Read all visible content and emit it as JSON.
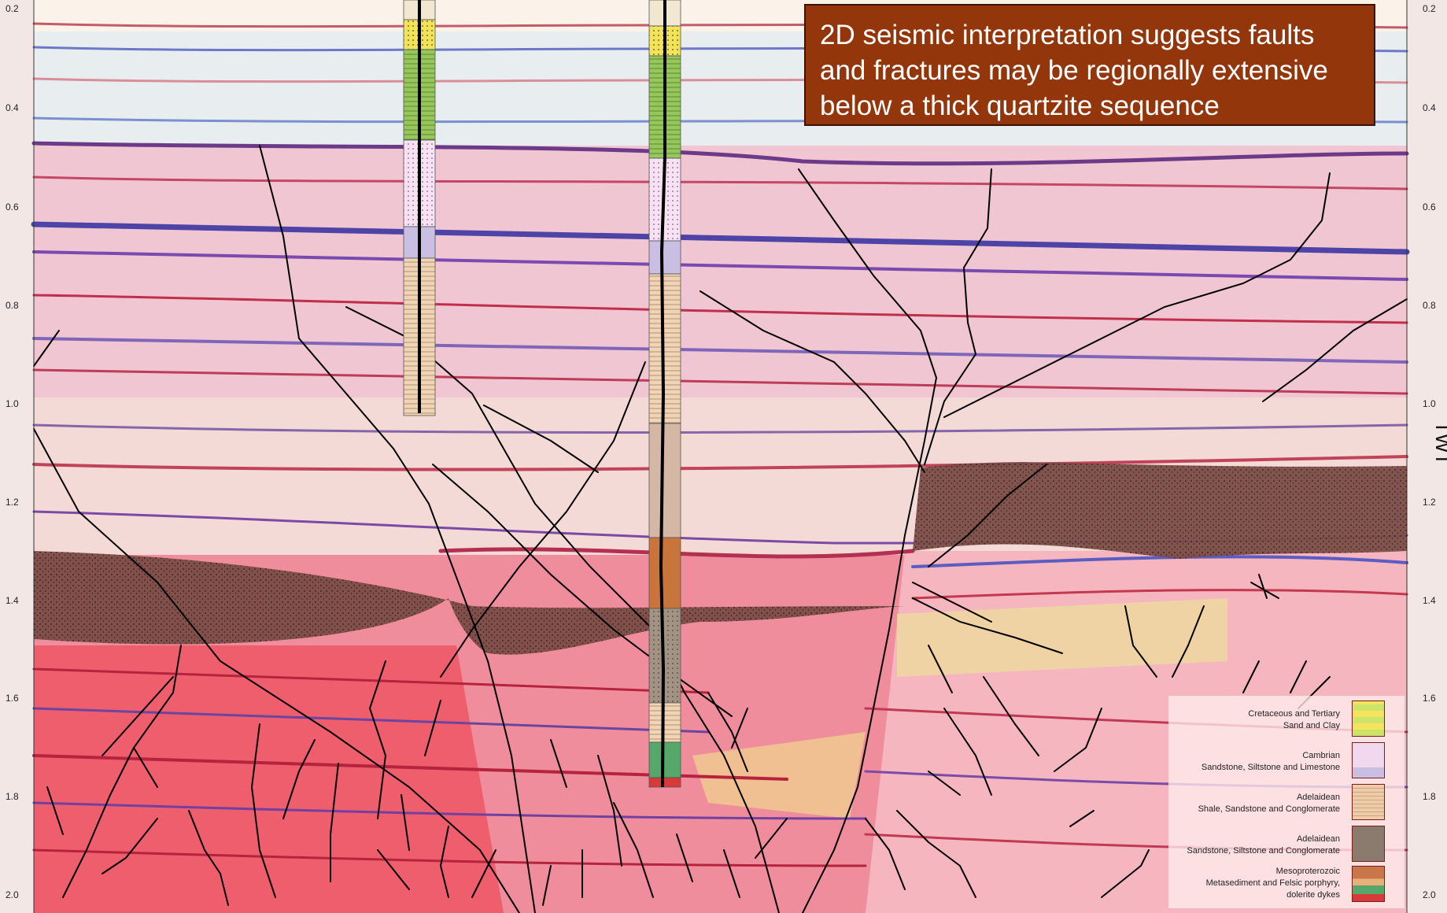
{
  "callout": {
    "lines": [
      "2D seismic interpretation suggests faults",
      "and fractures may be regionally extensive",
      "below a thick quartzite sequence"
    ]
  },
  "axis": {
    "ticks": [
      "0.2",
      "0.4",
      "0.6",
      "0.8",
      "1.0",
      "1.2",
      "1.4",
      "1.6",
      "1.8",
      "2.0"
    ],
    "right_title": "TWT"
  },
  "legend": [
    {
      "line1": "Cretaceous and Tertiary",
      "line2": "Sand and Clay",
      "line3": "",
      "icon": "sand-clay-pattern-icon",
      "color": "#cde36a"
    },
    {
      "line1": "Cambrian",
      "line2": "Sandstone, Siltstone and Limestone",
      "line3": "",
      "icon": "dotted-pink-pattern-icon",
      "color": "#f2d8ee"
    },
    {
      "line1": "Adelaidean",
      "line2": "Shale, Sandstone and Conglomerate",
      "line3": "",
      "icon": "shale-pattern-icon",
      "color": "#efcba8"
    },
    {
      "line1": "Adelaidean",
      "line2": "Sandstone, Siltstone and Conglomerate",
      "line3": "",
      "icon": "quartzite-pattern-icon",
      "color": "#8b7a6e"
    },
    {
      "line1": "Mesoproterozoic",
      "line2": "Metasediment and  Felsic porphyry,",
      "line3": "dolerite dykes",
      "icon": "basement-pattern-icon",
      "color": "#c9774a"
    }
  ],
  "colors": {
    "callout_bg": "#93360c",
    "quartzite": "#7a4f48",
    "basement": "#e8505d",
    "fault_lines": "#000000"
  }
}
